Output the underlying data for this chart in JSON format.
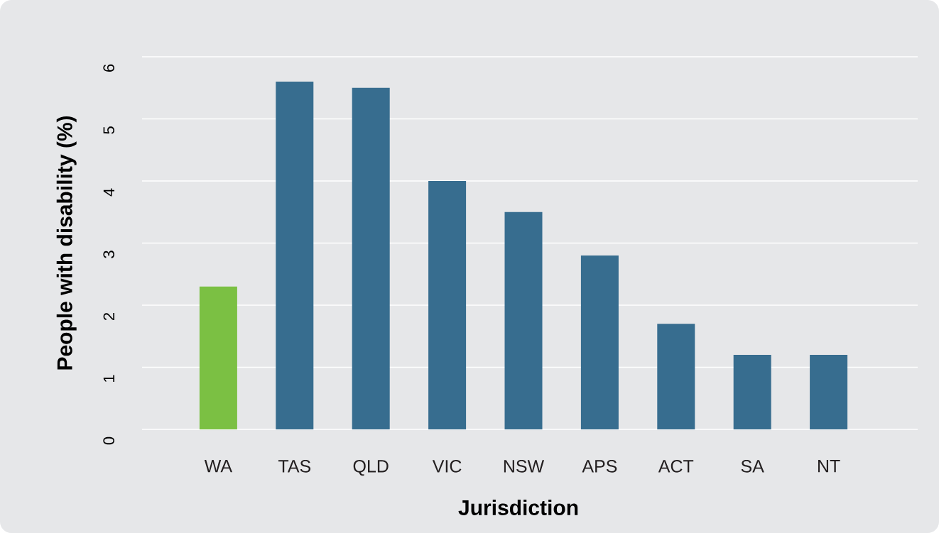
{
  "chart_data": {
    "type": "bar",
    "categories": [
      "WA",
      "TAS",
      "QLD",
      "VIC",
      "NSW",
      "APS",
      "ACT",
      "SA",
      "NT"
    ],
    "values": [
      2.3,
      5.6,
      5.5,
      4.0,
      3.5,
      2.8,
      1.7,
      1.2,
      1.2
    ],
    "colors": [
      "#7bc043",
      "#376d8f",
      "#376d8f",
      "#376d8f",
      "#376d8f",
      "#376d8f",
      "#376d8f",
      "#376d8f",
      "#376d8f"
    ],
    "xlabel": "Jurisdiction",
    "ylabel": "People with disability (%)",
    "ylim": [
      0,
      6
    ],
    "yticks": [
      0,
      1,
      2,
      3,
      4,
      5,
      6
    ],
    "grid": "y"
  }
}
